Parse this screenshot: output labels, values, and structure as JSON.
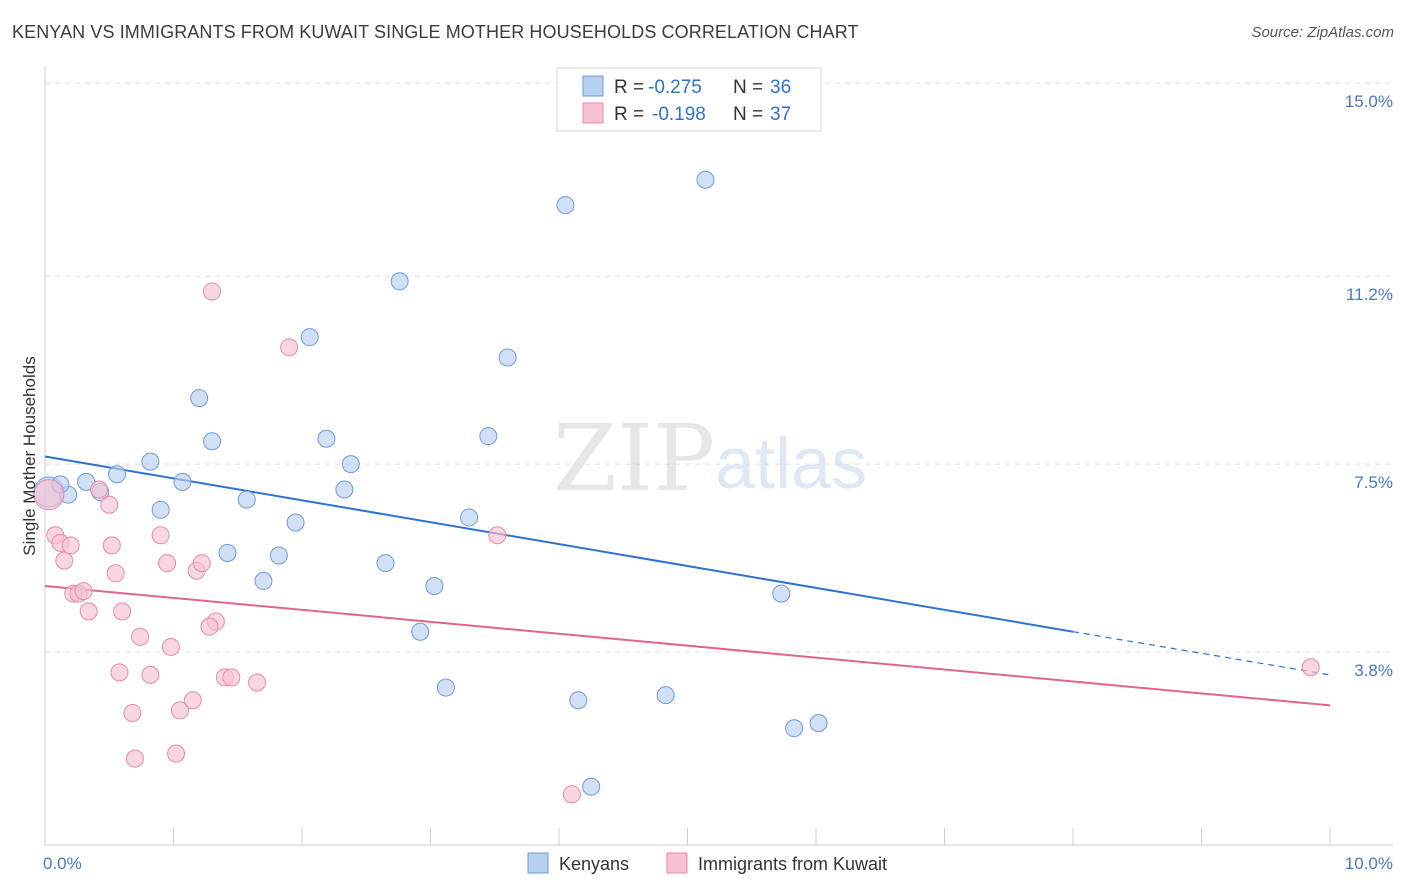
{
  "header": {
    "title": "KENYAN VS IMMIGRANTS FROM KUWAIT SINGLE MOTHER HOUSEHOLDS CORRELATION CHART",
    "source": "Source: ZipAtlas.com"
  },
  "watermark": {
    "zip": "ZIP",
    "atlas": "atlas"
  },
  "colors": {
    "blue_fill": "#b8d0f0",
    "blue_stroke": "#6f9bd8",
    "blue_line": "#2f72d0",
    "pink_fill": "#f6c1d3",
    "pink_stroke": "#e68aab",
    "pink_line": "#e0648f",
    "tick_text": "#4a78c2",
    "grid": "#dddddd"
  },
  "stats_box": {
    "rows": [
      {
        "r_label": "R = ",
        "r_value": "-0.275",
        "n_label": "N = ",
        "n_value": "36"
      },
      {
        "r_label": "R = ",
        "r_value": "-0.198",
        "n_label": "N = ",
        "n_value": "37"
      }
    ]
  },
  "chart_data": {
    "type": "scatter",
    "title": "KENYAN VS IMMIGRANTS FROM KUWAIT SINGLE MOTHER HOUSEHOLDS CORRELATION CHART",
    "xlabel": "",
    "ylabel": "Single Mother Households",
    "xlim": [
      0,
      10
    ],
    "ylim": [
      0,
      15.3
    ],
    "x_tick_labels": [
      "0.0%",
      "10.0%"
    ],
    "y_ticks": [
      3.8,
      7.5,
      11.2,
      15.0
    ],
    "y_tick_labels": [
      "3.8%",
      "7.5%",
      "11.2%",
      "15.0%"
    ],
    "grid": "horizontal dashed",
    "legend_position": "bottom-center",
    "series": [
      {
        "name": "Kenyans",
        "color": "#6f9bd8",
        "r": -0.275,
        "n": 36,
        "trend": {
          "x": [
            0.0,
            8.0
          ],
          "y": [
            7.65,
            4.2
          ],
          "dashed_to": [
            10.0,
            3.35
          ]
        },
        "points": [
          {
            "x": 0.03,
            "y": 6.95,
            "big": true
          },
          {
            "x": 0.18,
            "y": 6.9
          },
          {
            "x": 0.32,
            "y": 7.15
          },
          {
            "x": 0.43,
            "y": 6.95
          },
          {
            "x": 0.56,
            "y": 7.3
          },
          {
            "x": 0.82,
            "y": 7.55
          },
          {
            "x": 0.9,
            "y": 6.6
          },
          {
            "x": 1.07,
            "y": 7.15
          },
          {
            "x": 1.2,
            "y": 8.8
          },
          {
            "x": 1.3,
            "y": 7.95
          },
          {
            "x": 1.42,
            "y": 5.75
          },
          {
            "x": 1.57,
            "y": 6.8
          },
          {
            "x": 1.7,
            "y": 5.2
          },
          {
            "x": 1.82,
            "y": 5.7
          },
          {
            "x": 1.95,
            "y": 6.35
          },
          {
            "x": 2.06,
            "y": 10.0
          },
          {
            "x": 2.19,
            "y": 8.0
          },
          {
            "x": 2.33,
            "y": 7.0
          },
          {
            "x": 2.38,
            "y": 7.5
          },
          {
            "x": 2.65,
            "y": 5.55
          },
          {
            "x": 2.76,
            "y": 11.1
          },
          {
            "x": 2.92,
            "y": 4.2
          },
          {
            "x": 3.03,
            "y": 5.1
          },
          {
            "x": 3.12,
            "y": 3.1
          },
          {
            "x": 3.45,
            "y": 8.05
          },
          {
            "x": 3.3,
            "y": 6.45
          },
          {
            "x": 3.6,
            "y": 9.6
          },
          {
            "x": 4.05,
            "y": 12.6
          },
          {
            "x": 4.15,
            "y": 2.85
          },
          {
            "x": 4.25,
            "y": 1.15
          },
          {
            "x": 4.83,
            "y": 2.95
          },
          {
            "x": 5.14,
            "y": 13.1
          },
          {
            "x": 5.73,
            "y": 4.95
          },
          {
            "x": 5.83,
            "y": 2.3
          },
          {
            "x": 6.02,
            "y": 2.4
          },
          {
            "x": 0.12,
            "y": 7.1
          }
        ]
      },
      {
        "name": "Immigrants from Kuwait",
        "color": "#e68aab",
        "r": -0.198,
        "n": 37,
        "trend": {
          "x": [
            0.0,
            10.0
          ],
          "y": [
            5.1,
            2.75
          ]
        },
        "points": [
          {
            "x": 0.03,
            "y": 6.9,
            "big": true
          },
          {
            "x": 0.08,
            "y": 6.1
          },
          {
            "x": 0.12,
            "y": 5.95
          },
          {
            "x": 0.15,
            "y": 5.6
          },
          {
            "x": 0.2,
            "y": 5.9
          },
          {
            "x": 0.22,
            "y": 4.95
          },
          {
            "x": 0.26,
            "y": 4.95
          },
          {
            "x": 0.3,
            "y": 5.0
          },
          {
            "x": 0.34,
            "y": 4.6
          },
          {
            "x": 0.42,
            "y": 7.0
          },
          {
            "x": 0.5,
            "y": 6.7
          },
          {
            "x": 0.52,
            "y": 5.9
          },
          {
            "x": 0.55,
            "y": 5.35
          },
          {
            "x": 0.58,
            "y": 3.4
          },
          {
            "x": 0.6,
            "y": 4.6
          },
          {
            "x": 0.68,
            "y": 2.6
          },
          {
            "x": 0.7,
            "y": 1.7
          },
          {
            "x": 0.74,
            "y": 4.1
          },
          {
            "x": 0.82,
            "y": 3.35
          },
          {
            "x": 0.9,
            "y": 6.1
          },
          {
            "x": 0.95,
            "y": 5.55
          },
          {
            "x": 0.98,
            "y": 3.9
          },
          {
            "x": 1.02,
            "y": 1.8
          },
          {
            "x": 1.05,
            "y": 2.65
          },
          {
            "x": 1.15,
            "y": 2.85
          },
          {
            "x": 1.18,
            "y": 5.4
          },
          {
            "x": 1.22,
            "y": 5.55
          },
          {
            "x": 1.3,
            "y": 10.9
          },
          {
            "x": 1.33,
            "y": 4.4
          },
          {
            "x": 1.4,
            "y": 3.3
          },
          {
            "x": 1.45,
            "y": 3.3
          },
          {
            "x": 1.65,
            "y": 3.2
          },
          {
            "x": 1.9,
            "y": 9.8
          },
          {
            "x": 3.52,
            "y": 6.1
          },
          {
            "x": 4.1,
            "y": 1.0
          },
          {
            "x": 9.85,
            "y": 3.5
          },
          {
            "x": 1.28,
            "y": 4.3
          }
        ]
      }
    ]
  }
}
